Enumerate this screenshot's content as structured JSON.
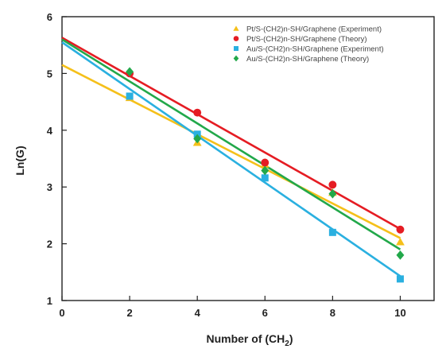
{
  "chart_data": {
    "type": "scatter",
    "title": "",
    "xlabel_parts": {
      "prefix": "Number of (CH",
      "sub": "2",
      "suffix": ")"
    },
    "ylabel": "Ln(G)",
    "xlim": [
      0,
      11
    ],
    "ylim": [
      1,
      6
    ],
    "xticks": [
      0,
      2,
      4,
      6,
      8,
      10
    ],
    "yticks": [
      1,
      2,
      3,
      4,
      5,
      6
    ],
    "grid": false,
    "legend_position": "top-right",
    "series": [
      {
        "name": "Pt/S-(CH2)n-SH/Graphene (Experiment)",
        "color": "#f5c01a",
        "marker": "triangle",
        "x": [
          2,
          4,
          6,
          8,
          10
        ],
        "y": [
          4.57,
          3.78,
          3.4,
          2.9,
          2.03
        ],
        "fit": {
          "intercept": 5.15,
          "slope": -0.305
        }
      },
      {
        "name": "Pt/S-(CH2)n-SH/Graphene (Theory)",
        "color": "#e51c23",
        "marker": "circle",
        "x": [
          2,
          4,
          6,
          8,
          10
        ],
        "y": [
          5.0,
          4.31,
          3.43,
          3.04,
          2.25
        ],
        "fit": {
          "intercept": 5.63,
          "slope": -0.337
        }
      },
      {
        "name": "Au/S-(CH2)n-SH/Graphene (Experiment)",
        "color": "#2ab0e0",
        "marker": "square",
        "x": [
          2,
          4,
          6,
          8,
          10
        ],
        "y": [
          4.6,
          3.93,
          3.16,
          2.2,
          1.38
        ],
        "fit": {
          "intercept": 5.55,
          "slope": -0.412
        }
      },
      {
        "name": "Au/S-(CH2)n-SH/Graphene (Theory)",
        "color": "#22a84a",
        "marker": "diamond",
        "x": [
          2,
          4,
          6,
          8,
          10
        ],
        "y": [
          5.03,
          3.85,
          3.29,
          2.88,
          1.8
        ],
        "fit": {
          "intercept": 5.6,
          "slope": -0.37
        }
      }
    ]
  }
}
